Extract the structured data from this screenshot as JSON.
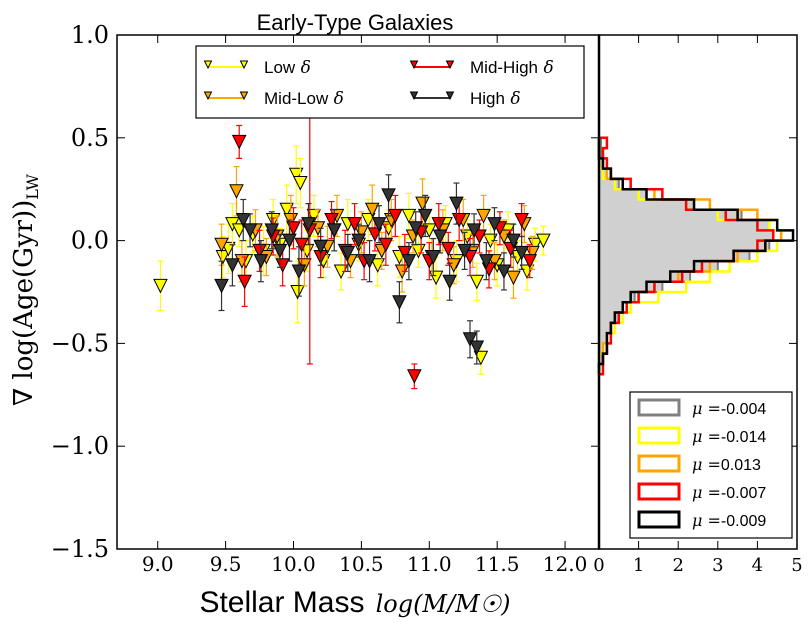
{
  "chart_data": [
    {
      "type": "scatter",
      "title": "Early-Type Galaxies",
      "xlabel_text": "Stellar Mass",
      "xlabel_math": "log(M/M☉)",
      "ylabel_math": "∇ log(Age(Gyr))",
      "ylabel_sub": "LW",
      "xlim": [
        8.7,
        12.25
      ],
      "ylim": [
        -1.5,
        1.0
      ],
      "xticks": [
        9.0,
        9.5,
        10.0,
        10.5,
        11.0,
        11.5,
        12.0
      ],
      "xtick_labels": [
        "9.0",
        "9.5",
        "10.0",
        "10.5",
        "11.0",
        "11.5",
        "12.0"
      ],
      "yticks": [
        1.0,
        0.5,
        0.0,
        -0.5,
        -1.0,
        -1.5
      ],
      "ytick_labels": [
        "1.0",
        "0.5",
        "0.0",
        "−0.5",
        "−1.0",
        "−1.5"
      ],
      "legend_location": "top-center",
      "series": [
        {
          "name": "Low δ",
          "label_text": "Low",
          "color": "#ffff00",
          "points": [
            [
              9.02,
              -0.22,
              0.12
            ],
            [
              9.48,
              -0.08,
              0.1
            ],
            [
              9.52,
              -0.04,
              0.12
            ],
            [
              9.55,
              0.08,
              0.1
            ],
            [
              9.6,
              0.05,
              0.08
            ],
            [
              9.65,
              -0.1,
              0.1
            ],
            [
              9.7,
              0.03,
              0.09
            ],
            [
              9.78,
              -0.05,
              0.12
            ],
            [
              9.85,
              0.1,
              0.1
            ],
            [
              9.9,
              -0.02,
              0.08
            ],
            [
              9.95,
              0.15,
              0.12
            ],
            [
              10.02,
              0.32,
              0.14
            ],
            [
              10.05,
              0.28,
              0.12
            ],
            [
              10.03,
              -0.25,
              0.15
            ],
            [
              10.1,
              -0.05,
              0.1
            ],
            [
              10.15,
              0.12,
              0.1
            ],
            [
              10.22,
              -0.1,
              0.08
            ],
            [
              10.3,
              0.05,
              0.1
            ],
            [
              10.35,
              -0.15,
              0.09
            ],
            [
              10.4,
              0.08,
              0.12
            ],
            [
              10.48,
              -0.02,
              0.08
            ],
            [
              10.55,
              0.1,
              0.1
            ],
            [
              10.62,
              -0.12,
              0.1
            ],
            [
              10.7,
              0.06,
              0.09
            ],
            [
              10.78,
              -0.08,
              0.1
            ],
            [
              10.85,
              0.12,
              0.11
            ],
            [
              10.92,
              -0.05,
              0.08
            ],
            [
              11.0,
              0.05,
              0.1
            ],
            [
              11.05,
              -0.18,
              0.1
            ],
            [
              11.12,
              0.08,
              0.09
            ],
            [
              11.2,
              -0.1,
              0.1
            ],
            [
              11.28,
              0.02,
              0.08
            ],
            [
              11.35,
              -0.2,
              0.09
            ],
            [
              11.38,
              -0.57,
              0.08
            ],
            [
              11.45,
              0.0,
              0.08
            ],
            [
              11.5,
              -0.12,
              0.1
            ],
            [
              11.58,
              0.05,
              0.09
            ],
            [
              11.65,
              -0.08,
              0.08
            ],
            [
              11.72,
              -0.15,
              0.09
            ],
            [
              11.78,
              -0.02,
              0.08
            ],
            [
              11.84,
              0.0,
              0.07
            ]
          ]
        },
        {
          "name": "Mid-Low δ",
          "label_text": "Mid-Low",
          "color": "#ffa500",
          "points": [
            [
              9.47,
              -0.02,
              0.1
            ],
            [
              9.58,
              0.24,
              0.12
            ],
            [
              9.62,
              -0.1,
              0.1
            ],
            [
              9.72,
              0.05,
              0.1
            ],
            [
              9.8,
              -0.08,
              0.09
            ],
            [
              9.88,
              0.02,
              0.1
            ],
            [
              9.98,
              0.1,
              0.12
            ],
            [
              10.08,
              -0.12,
              0.1
            ],
            [
              10.18,
              0.06,
              0.09
            ],
            [
              10.25,
              -0.03,
              0.1
            ],
            [
              10.32,
              0.12,
              0.1
            ],
            [
              10.42,
              -0.1,
              0.08
            ],
            [
              10.5,
              0.04,
              0.1
            ],
            [
              10.58,
              0.15,
              0.12
            ],
            [
              10.65,
              -0.05,
              0.09
            ],
            [
              10.72,
              0.1,
              0.1
            ],
            [
              10.8,
              -0.15,
              0.1
            ],
            [
              10.88,
              0.02,
              0.08
            ],
            [
              10.95,
              0.18,
              0.12
            ],
            [
              11.02,
              -0.08,
              0.09
            ],
            [
              11.1,
              0.05,
              0.1
            ],
            [
              11.18,
              -0.12,
              0.09
            ],
            [
              11.25,
              0.1,
              0.1
            ],
            [
              11.32,
              -0.05,
              0.08
            ],
            [
              11.4,
              0.12,
              0.1
            ],
            [
              11.48,
              -0.1,
              0.09
            ],
            [
              11.55,
              0.02,
              0.08
            ],
            [
              11.62,
              -0.18,
              0.1
            ],
            [
              11.7,
              0.08,
              0.09
            ],
            [
              11.76,
              -0.06,
              0.08
            ]
          ]
        },
        {
          "name": "Mid-High δ",
          "label_text": "Mid-High",
          "color": "#ff0000",
          "points": [
            [
              9.6,
              0.48,
              0.08
            ],
            [
              9.64,
              -0.2,
              0.12
            ],
            [
              9.75,
              -0.05,
              0.1
            ],
            [
              9.85,
              0.02,
              0.09
            ],
            [
              9.92,
              -0.12,
              0.1
            ],
            [
              10.0,
              0.06,
              0.1
            ],
            [
              10.06,
              -0.02,
              0.12
            ],
            [
              10.12,
              0.05,
              0.65
            ],
            [
              10.2,
              -0.08,
              0.1
            ],
            [
              10.28,
              0.1,
              0.09
            ],
            [
              10.38,
              -0.05,
              0.1
            ],
            [
              10.45,
              0.08,
              0.1
            ],
            [
              10.52,
              -0.1,
              0.09
            ],
            [
              10.6,
              0.03,
              0.08
            ],
            [
              10.68,
              -0.02,
              0.1
            ],
            [
              10.75,
              0.12,
              0.1
            ],
            [
              10.82,
              -0.06,
              0.09
            ],
            [
              10.89,
              -0.66,
              0.06
            ],
            [
              10.94,
              0.04,
              0.1
            ],
            [
              11.0,
              -0.1,
              0.09
            ],
            [
              11.07,
              0.08,
              0.1
            ],
            [
              11.14,
              -0.04,
              0.08
            ],
            [
              11.22,
              0.1,
              0.1
            ],
            [
              11.3,
              -0.08,
              0.09
            ],
            [
              11.37,
              0.02,
              0.08
            ],
            [
              11.44,
              -0.14,
              0.09
            ],
            [
              11.52,
              0.06,
              0.08
            ],
            [
              11.6,
              -0.04,
              0.09
            ],
            [
              11.68,
              0.1,
              0.08
            ],
            [
              11.74,
              -0.1,
              0.08
            ]
          ]
        },
        {
          "name": "High δ",
          "label_text": "High",
          "color": "#333333",
          "points": [
            [
              9.47,
              -0.22,
              0.12
            ],
            [
              9.55,
              -0.12,
              0.1
            ],
            [
              9.63,
              0.1,
              0.1
            ],
            [
              9.68,
              0.05,
              0.08
            ],
            [
              9.76,
              -0.1,
              0.1
            ],
            [
              9.84,
              0.05,
              0.09
            ],
            [
              9.9,
              -0.05,
              0.08
            ],
            [
              9.97,
              0.0,
              0.1
            ],
            [
              10.04,
              -0.15,
              0.12
            ],
            [
              10.11,
              0.08,
              0.1
            ],
            [
              10.2,
              -0.03,
              0.09
            ],
            [
              10.3,
              0.05,
              0.1
            ],
            [
              10.4,
              -0.06,
              0.09
            ],
            [
              10.48,
              0.0,
              0.08
            ],
            [
              10.56,
              -0.1,
              0.1
            ],
            [
              10.63,
              0.08,
              0.09
            ],
            [
              10.7,
              0.22,
              0.1
            ],
            [
              10.78,
              -0.3,
              0.1
            ],
            [
              10.85,
              -0.1,
              0.09
            ],
            [
              10.9,
              0.06,
              0.08
            ],
            [
              10.97,
              0.12,
              0.1
            ],
            [
              11.03,
              -0.08,
              0.09
            ],
            [
              11.08,
              0.02,
              0.08
            ],
            [
              11.15,
              -0.2,
              0.09
            ],
            [
              11.2,
              0.18,
              0.1
            ],
            [
              11.26,
              -0.05,
              0.09
            ],
            [
              11.33,
              0.05,
              0.08
            ],
            [
              11.3,
              -0.48,
              0.09
            ],
            [
              11.35,
              -0.52,
              0.08
            ],
            [
              11.42,
              -0.1,
              0.09
            ],
            [
              11.48,
              0.08,
              0.08
            ],
            [
              11.55,
              -0.15,
              0.09
            ],
            [
              11.62,
              0.0,
              0.08
            ],
            [
              11.68,
              -0.06,
              0.08
            ]
          ]
        }
      ]
    },
    {
      "type": "histogram",
      "orientation": "horizontal",
      "xlim": [
        0,
        5
      ],
      "xticks": [
        0,
        1,
        2,
        3,
        4,
        5
      ],
      "xtick_labels": [
        "0",
        "1",
        "2",
        "3",
        "4",
        "5"
      ],
      "ylim": [
        -1.5,
        1.0
      ],
      "bin_edges": [
        -0.65,
        -0.6,
        -0.55,
        -0.5,
        -0.45,
        -0.4,
        -0.35,
        -0.3,
        -0.25,
        -0.2,
        -0.15,
        -0.1,
        -0.05,
        0.0,
        0.05,
        0.1,
        0.15,
        0.2,
        0.25,
        0.3,
        0.35,
        0.4,
        0.45,
        0.5
      ],
      "legend_location": "bottom-right",
      "series": [
        {
          "name": "all",
          "legend": "μ =-0.004",
          "legend_value": "-0.004",
          "color": "#808080",
          "filled": true,
          "values": [
            0.0,
            0.1,
            0.1,
            0.2,
            0.3,
            0.5,
            0.6,
            0.9,
            1.6,
            2.3,
            3.0,
            3.8,
            4.3,
            4.4,
            4.3,
            3.6,
            2.4,
            1.2,
            0.5,
            0.2,
            0.1,
            0.05,
            0.05
          ]
        },
        {
          "name": "low",
          "legend": "μ =-0.014",
          "legend_value": "-0.014",
          "color": "#ffff00",
          "filled": false,
          "values": [
            0.0,
            0.0,
            0.1,
            0.2,
            0.4,
            0.6,
            0.8,
            1.5,
            2.2,
            2.8,
            3.3,
            4.0,
            4.5,
            4.6,
            4.3,
            3.0,
            2.2,
            1.0,
            0.4,
            0.1,
            0.0,
            0.0,
            0.0
          ]
        },
        {
          "name": "midlow",
          "legend": "μ =0.013",
          "legend_value": "0.013",
          "color": "#ffa500",
          "filled": false,
          "values": [
            0.0,
            0.1,
            0.1,
            0.2,
            0.3,
            0.4,
            0.6,
            1.0,
            1.4,
            2.0,
            2.8,
            3.5,
            4.2,
            4.6,
            4.5,
            4.0,
            2.8,
            1.4,
            0.6,
            0.2,
            0.1,
            0.0,
            0.0
          ]
        },
        {
          "name": "midhigh",
          "legend": "μ =-0.007",
          "legend_value": "-0.007",
          "color": "#ff0000",
          "filled": false,
          "values": [
            0.1,
            0.1,
            0.2,
            0.3,
            0.3,
            0.5,
            0.7,
            1.0,
            1.4,
            2.1,
            2.6,
            3.4,
            4.0,
            4.4,
            4.0,
            3.2,
            2.2,
            1.6,
            0.8,
            0.3,
            0.2,
            0.1,
            0.2
          ]
        },
        {
          "name": "high",
          "legend": "μ =-0.009",
          "legend_value": "-0.009",
          "color": "#000000",
          "filled": false,
          "values": [
            0.0,
            0.1,
            0.2,
            0.2,
            0.3,
            0.4,
            0.6,
            0.8,
            1.2,
            1.8,
            2.4,
            3.4,
            4.2,
            4.9,
            4.5,
            3.5,
            2.4,
            1.2,
            0.6,
            0.3,
            0.1,
            0.0,
            0.0
          ]
        }
      ]
    }
  ]
}
